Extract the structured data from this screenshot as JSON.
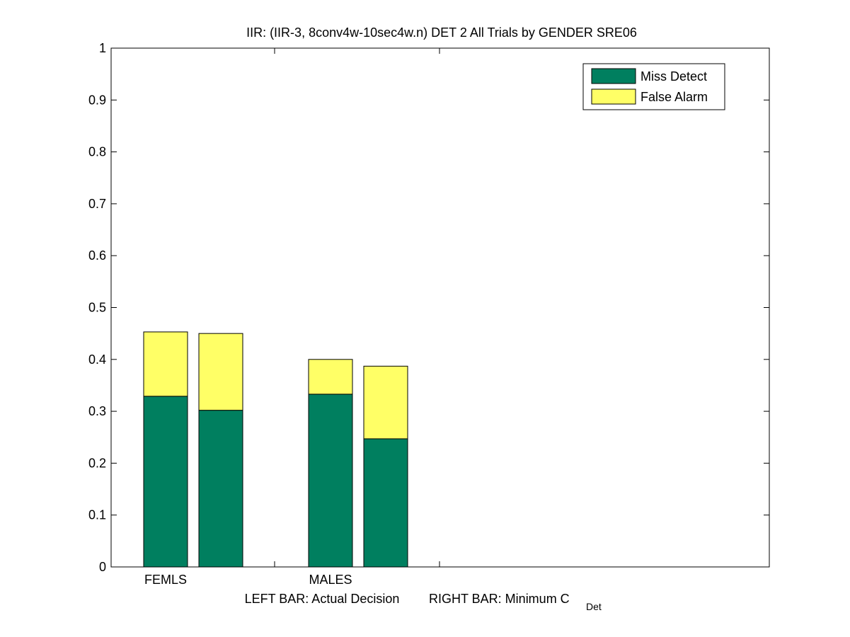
{
  "chart_data": {
    "type": "bar",
    "stacked": true,
    "title": "IIR: (IIR-3, 8conv4w-10sec4w.n) DET 2 All Trials by GENDER SRE06",
    "categories": [
      "FEMLS",
      "MALES"
    ],
    "bars_per_category": [
      "LEFT BAR: Actual Decision",
      "RIGHT BAR: Minimum C"
    ],
    "xlabel": {
      "left": "LEFT BAR: Actual Decision",
      "right": "RIGHT BAR: Minimum C",
      "right_subscript": "Det"
    },
    "ylim": [
      0,
      1
    ],
    "yticks": [
      "0",
      "0.1",
      "0.2",
      "0.3",
      "0.4",
      "0.5",
      "0.6",
      "0.7",
      "0.8",
      "0.9",
      "1"
    ],
    "series": [
      {
        "name": "Miss Detect",
        "color": "#007f5f",
        "values": [
          [
            0.329,
            0.302
          ],
          [
            0.333,
            0.247
          ]
        ]
      },
      {
        "name": "False Alarm",
        "color": "#ffff66",
        "values": [
          [
            0.124,
            0.148
          ],
          [
            0.067,
            0.14
          ]
        ]
      }
    ],
    "legend_position": "top-right",
    "grid": false
  }
}
